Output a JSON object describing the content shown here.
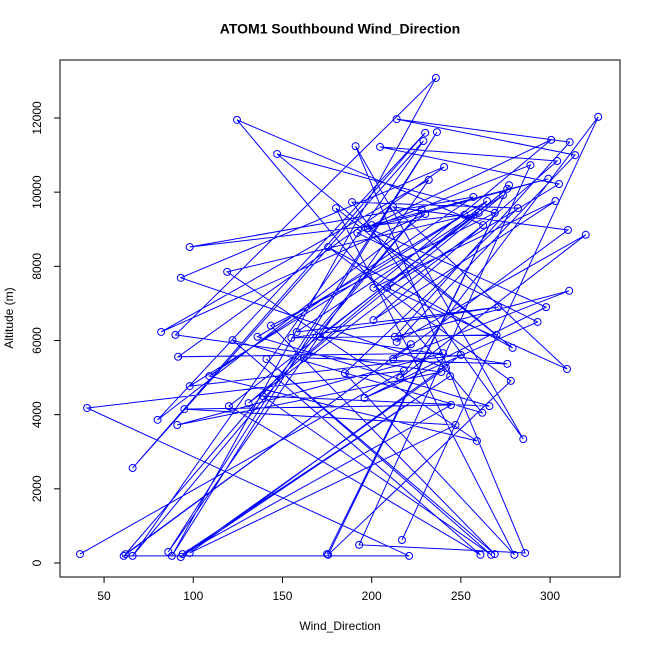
{
  "chart_data": {
    "type": "line",
    "title": "ATOM1 Southbound Wind_Direction",
    "xlabel": "Wind_Direction",
    "ylabel": "Altitude (m)",
    "color": "#0000ff",
    "markers": true,
    "grid": false,
    "xlim": [
      25.3,
      339.2
    ],
    "ylim": [
      -378,
      13564
    ],
    "xticks": [
      50,
      100,
      150,
      200,
      250,
      300
    ],
    "yticks": [
      0,
      2000,
      4000,
      6000,
      8000,
      10000,
      12000
    ],
    "series": [
      {
        "name": "Wind_Direction",
        "color": "#0000ff",
        "x": [
          36.5,
          218,
          40.5,
          221,
          61,
          222,
          62,
          228,
          66,
          229,
          66,
          230,
          80,
          230,
          82,
          232,
          86,
          236.6,
          88,
          236,
          90,
          239,
          91,
          240,
          91.5,
          240.6,
          93,
          241.7,
          93,
          244,
          94,
          244.5,
          95,
          247,
          98,
          250,
          98,
          252,
          98,
          257,
          109,
          259,
          119,
          260,
          120,
          261,
          122,
          262,
          124.5,
          262.5,
          131,
          264.7,
          136,
          266,
          139,
          267,
          141,
          269,
          143.5,
          269,
          147,
          270,
          155,
          271,
          158,
          273.6,
          162,
          276,
          171,
          276,
          175,
          277,
          175.6,
          278,
          175.6,
          279,
          180,
          280,
          185,
          282,
          189,
          285,
          191,
          286,
          193,
          289,
          192,
          293,
          196,
          297.8,
          198,
          299,
          200,
          300.6,
          201,
          303,
          201,
          304,
          204.7,
          305,
          208.6,
          309.5,
          212,
          310,
          212,
          310.7,
          213,
          311,
          214,
          314,
          214,
          320,
          216,
          327,
          217
        ],
        "values": [
          240,
          5180,
          4180,
          190,
          190,
          5900,
          240,
          9520,
          190,
          11380,
          2560,
          11600,
          3860,
          9410,
          6230,
          10330,
          300,
          11620,
          190,
          13080,
          6150,
          5150,
          3720,
          5660,
          5560,
          10680,
          7690,
          5260,
          160,
          5040,
          240,
          4260,
          4150,
          3720,
          270,
          5610,
          4770,
          9390,
          8520,
          9870,
          5040,
          3290,
          7850,
          9440,
          4230,
          220,
          6010,
          4050,
          11950,
          9110,
          4310,
          9760,
          6100,
          4230,
          4500,
          220,
          5500,
          240,
          6400,
          9440,
          11030,
          6150,
          6070,
          6900,
          6230,
          9920,
          5530,
          5370,
          6100,
          10090,
          240,
          10190,
          220,
          4910,
          8520,
          5800,
          9570,
          220,
          5120,
          9570,
          9730,
          3340,
          11240,
          270,
          490,
          10730,
          8900,
          6500,
          4450,
          6900,
          9030,
          10360,
          9110,
          11410,
          7420,
          9760,
          6550,
          10840,
          11220,
          10220,
          7420,
          5230,
          9600,
          8980,
          5500,
          7340,
          6100,
          11350,
          11970,
          11000,
          5960,
          8850,
          4990,
          12030,
          620
        ]
      }
    ]
  }
}
